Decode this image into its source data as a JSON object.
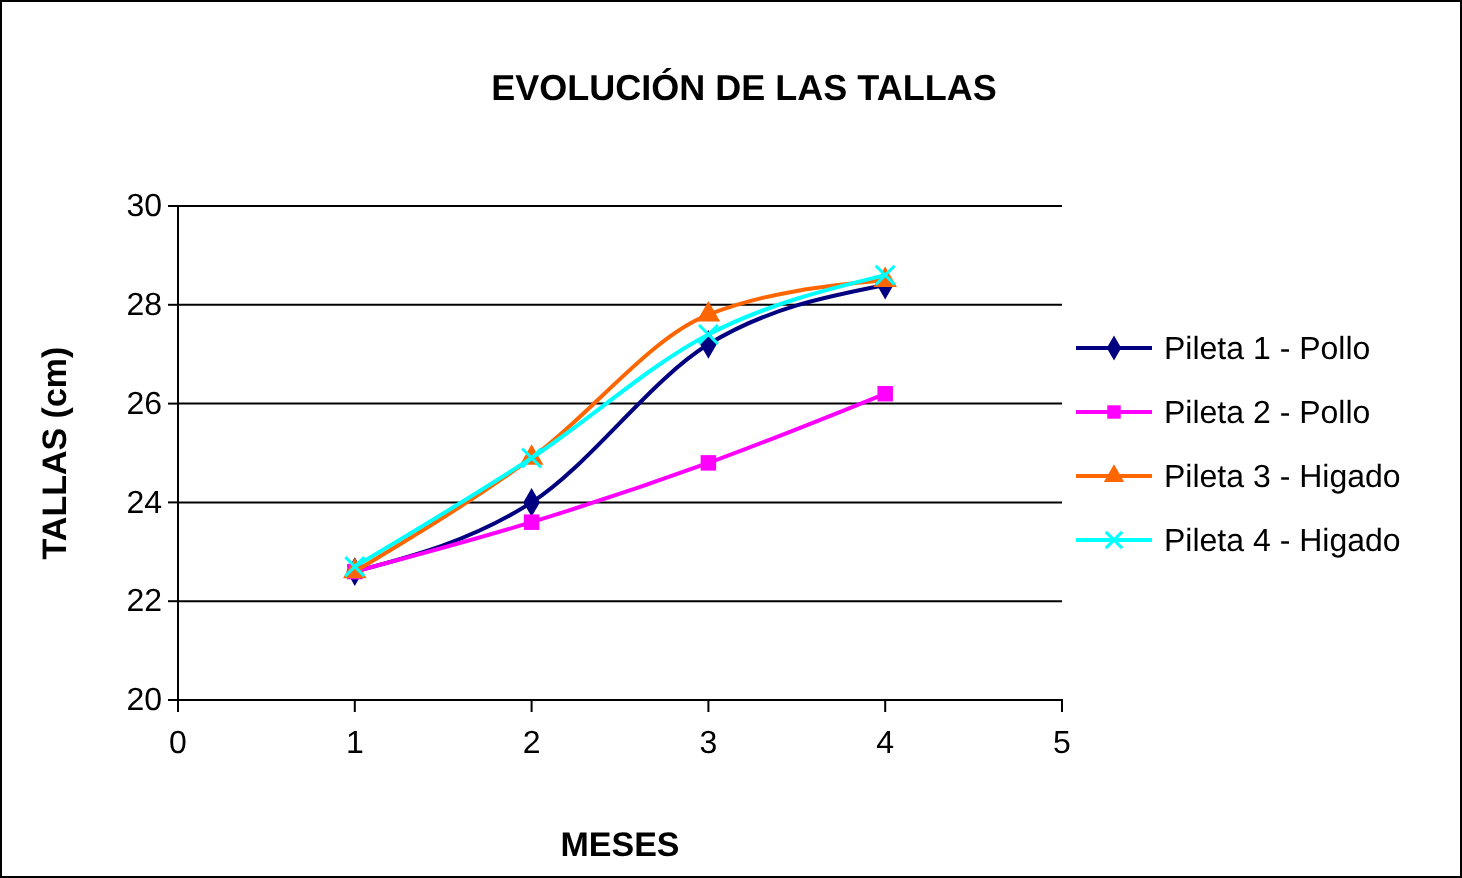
{
  "chart_data": {
    "type": "line",
    "title": "EVOLUCIÓN DE LAS TALLAS",
    "xlabel": "MESES",
    "ylabel": "TALLAS (cm)",
    "x": [
      1,
      2,
      3,
      4
    ],
    "xlim": [
      0,
      5
    ],
    "xticks": [
      0,
      1,
      2,
      3,
      4,
      5
    ],
    "ylim": [
      20,
      30
    ],
    "yticks": [
      20,
      22,
      24,
      26,
      28,
      30
    ],
    "grid": "y",
    "legend": "right",
    "series": [
      {
        "name": "Pileta 1 - Pollo",
        "color": "#000080",
        "marker": "diamond",
        "values": [
          22.6,
          24.0,
          27.2,
          28.4
        ]
      },
      {
        "name": "Pileta 2 - Pollo",
        "color": "#ff00ff",
        "marker": "square",
        "values": [
          22.6,
          23.6,
          24.8,
          26.2
        ]
      },
      {
        "name": "Pileta 3 - Higado",
        "color": "#ff6600",
        "marker": "triangle",
        "values": [
          22.6,
          24.9,
          27.8,
          28.5
        ]
      },
      {
        "name": "Pileta 4 - Higado",
        "color": "#00ffff",
        "marker": "cross",
        "values": [
          22.7,
          24.9,
          27.4,
          28.6
        ]
      }
    ]
  }
}
